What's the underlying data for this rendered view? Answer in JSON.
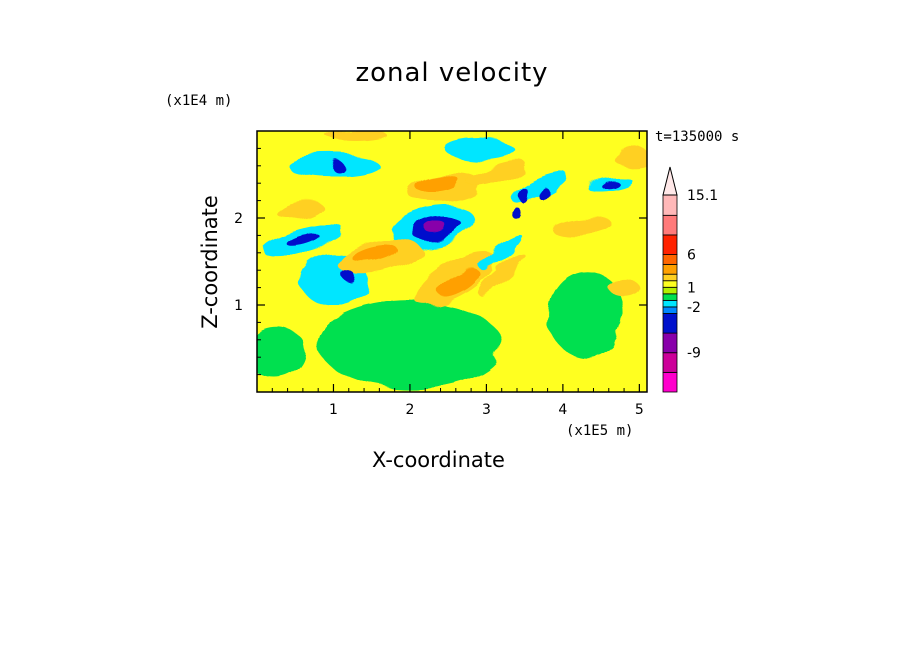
{
  "chart_data": {
    "type": "heatmap",
    "title": "zonal velocity",
    "xlabel": "X-coordinate",
    "ylabel": "Z-coordinate",
    "x_unit_label": "(x1E5 m)",
    "y_unit_label": "(x1E4 m)",
    "time_label": "t=135000 s",
    "xlim": [
      0,
      5.1
    ],
    "ylim": [
      0,
      3.0
    ],
    "x_ticks": [
      "1",
      "2",
      "3",
      "4",
      "5"
    ],
    "y_ticks": [
      "1",
      "2"
    ],
    "x_tick_values": [
      1,
      2,
      3,
      4,
      5
    ],
    "y_tick_values": [
      1,
      2
    ],
    "colorbar": {
      "min": -15,
      "max": 15.1,
      "labels": [
        {
          "value": 15.1,
          "text": "15.1"
        },
        {
          "value": 6,
          "text": "6"
        },
        {
          "value": 1,
          "text": "1"
        },
        {
          "value": -2,
          "text": "-2"
        },
        {
          "value": -9,
          "text": "-9"
        }
      ],
      "levels": [
        {
          "lo": -15,
          "hi": -12,
          "color": "#ff00cc"
        },
        {
          "lo": -12,
          "hi": -9,
          "color": "#cc0099"
        },
        {
          "lo": -9,
          "hi": -6,
          "color": "#8800aa"
        },
        {
          "lo": -6,
          "hi": -3,
          "color": "#0011cc"
        },
        {
          "lo": -3,
          "hi": -2,
          "color": "#0088ff"
        },
        {
          "lo": -2,
          "hi": -1,
          "color": "#00e6ff"
        },
        {
          "lo": -1,
          "hi": 0,
          "color": "#00e050"
        },
        {
          "lo": 0,
          "hi": 1,
          "color": "#b4f000"
        },
        {
          "lo": 1,
          "hi": 2,
          "color": "#ffff20"
        },
        {
          "lo": 2,
          "hi": 3,
          "color": "#ffd020"
        },
        {
          "lo": 3,
          "hi": 4.5,
          "color": "#ffa000"
        },
        {
          "lo": 4.5,
          "hi": 6,
          "color": "#ff6600"
        },
        {
          "lo": 6,
          "hi": 9,
          "color": "#ff2200"
        },
        {
          "lo": 9,
          "hi": 12,
          "color": "#ff7a7a"
        },
        {
          "lo": 12,
          "hi": 15.1,
          "color": "#ffb8b8"
        }
      ]
    },
    "regions": [
      {
        "x": 2.3,
        "y": 1.9,
        "rx": 0.55,
        "ry": 0.22,
        "rot": -12,
        "value": -1.5
      },
      {
        "x": 2.35,
        "y": 1.88,
        "rx": 0.33,
        "ry": 0.13,
        "rot": -10,
        "value": -4
      },
      {
        "x": 2.35,
        "y": 1.88,
        "rx": 0.14,
        "ry": 0.06,
        "rot": -10,
        "value": -7
      },
      {
        "x": 1.0,
        "y": 1.3,
        "rx": 0.45,
        "ry": 0.3,
        "rot": 0,
        "value": -1.5
      },
      {
        "x": 1.2,
        "y": 1.33,
        "rx": 0.08,
        "ry": 0.06,
        "rot": 0,
        "value": -4
      },
      {
        "x": 0.6,
        "y": 1.75,
        "rx": 0.55,
        "ry": 0.12,
        "rot": -15,
        "value": -1.5
      },
      {
        "x": 0.6,
        "y": 1.75,
        "rx": 0.22,
        "ry": 0.05,
        "rot": -15,
        "value": -4
      },
      {
        "x": 1.0,
        "y": 2.6,
        "rx": 0.6,
        "ry": 0.12,
        "rot": 0,
        "value": -1.5
      },
      {
        "x": 1.05,
        "y": 2.6,
        "rx": 0.08,
        "ry": 0.06,
        "rot": 0,
        "value": -4
      },
      {
        "x": 3.2,
        "y": 1.6,
        "rx": 0.35,
        "ry": 0.08,
        "rot": -38,
        "value": -1.5
      },
      {
        "x": 3.7,
        "y": 2.35,
        "rx": 0.4,
        "ry": 0.1,
        "rot": -25,
        "value": -1.5
      },
      {
        "x": 3.5,
        "y": 2.25,
        "rx": 0.06,
        "ry": 0.09,
        "rot": 0,
        "value": -4
      },
      {
        "x": 3.75,
        "y": 2.28,
        "rx": 0.06,
        "ry": 0.09,
        "rot": 0,
        "value": -4
      },
      {
        "x": 3.4,
        "y": 2.05,
        "rx": 0.06,
        "ry": 0.07,
        "rot": 0,
        "value": -4
      },
      {
        "x": 4.6,
        "y": 2.4,
        "rx": 0.3,
        "ry": 0.07,
        "rot": -8,
        "value": -1.5
      },
      {
        "x": 4.6,
        "y": 2.4,
        "rx": 0.12,
        "ry": 0.04,
        "rot": -8,
        "value": -4
      },
      {
        "x": 2.9,
        "y": 2.8,
        "rx": 0.45,
        "ry": 0.12,
        "rot": 0,
        "value": -1.5
      },
      {
        "x": 0.25,
        "y": 0.45,
        "rx": 0.4,
        "ry": 0.3,
        "rot": 0,
        "value": -0.5
      },
      {
        "x": 2.0,
        "y": 0.55,
        "rx": 1.2,
        "ry": 0.5,
        "rot": 0,
        "value": -0.5
      },
      {
        "x": 4.3,
        "y": 0.9,
        "rx": 0.5,
        "ry": 0.5,
        "rot": 0,
        "value": -0.5
      },
      {
        "x": 1.6,
        "y": 1.55,
        "rx": 0.55,
        "ry": 0.18,
        "rot": -12,
        "value": 2.5
      },
      {
        "x": 1.55,
        "y": 1.58,
        "rx": 0.3,
        "ry": 0.09,
        "rot": -12,
        "value": 3.5
      },
      {
        "x": 2.45,
        "y": 2.35,
        "rx": 0.5,
        "ry": 0.17,
        "rot": -5,
        "value": 2.5
      },
      {
        "x": 2.35,
        "y": 2.4,
        "rx": 0.3,
        "ry": 0.1,
        "rot": -5,
        "value": 3.8
      },
      {
        "x": 2.6,
        "y": 1.3,
        "rx": 0.6,
        "ry": 0.2,
        "rot": -30,
        "value": 2.5
      },
      {
        "x": 2.65,
        "y": 1.25,
        "rx": 0.3,
        "ry": 0.1,
        "rot": -30,
        "value": 3.5
      },
      {
        "x": 3.2,
        "y": 1.35,
        "rx": 0.4,
        "ry": 0.08,
        "rot": -40,
        "value": 2.5
      },
      {
        "x": 0.55,
        "y": 2.1,
        "rx": 0.3,
        "ry": 0.1,
        "rot": -10,
        "value": 2.5
      },
      {
        "x": 3.15,
        "y": 2.5,
        "rx": 0.4,
        "ry": 0.1,
        "rot": -20,
        "value": 2.5
      },
      {
        "x": 4.25,
        "y": 1.9,
        "rx": 0.4,
        "ry": 0.1,
        "rot": -5,
        "value": 2.5
      },
      {
        "x": 4.9,
        "y": 2.7,
        "rx": 0.25,
        "ry": 0.1,
        "rot": 0,
        "value": 2.5
      },
      {
        "x": 4.8,
        "y": 1.2,
        "rx": 0.2,
        "ry": 0.1,
        "rot": 0,
        "value": 2.5
      },
      {
        "x": 1.3,
        "y": 2.95,
        "rx": 0.4,
        "ry": 0.07,
        "rot": 0,
        "value": 2.5
      }
    ]
  }
}
